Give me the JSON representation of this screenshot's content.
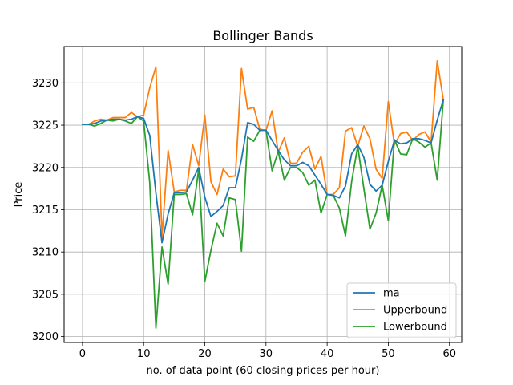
{
  "chart_data": {
    "type": "line",
    "title": "Bollinger Bands",
    "xlabel": "no. of data point (60 closing prices per hour)",
    "ylabel": "Price",
    "xlim": [
      -3,
      62
    ],
    "ylim": [
      3199.3,
      3234.3
    ],
    "xticks": [
      0,
      10,
      20,
      30,
      40,
      50,
      60
    ],
    "yticks": [
      3200,
      3205,
      3210,
      3215,
      3220,
      3225,
      3230
    ],
    "grid": true,
    "legend_position": "lower right",
    "x": [
      0,
      1,
      2,
      3,
      4,
      5,
      6,
      7,
      8,
      9,
      10,
      11,
      12,
      13,
      14,
      15,
      16,
      17,
      18,
      19,
      20,
      21,
      22,
      23,
      24,
      25,
      26,
      27,
      28,
      29,
      30,
      31,
      32,
      33,
      34,
      35,
      36,
      37,
      38,
      39,
      40,
      41,
      42,
      43,
      44,
      45,
      46,
      47,
      48,
      49,
      50,
      51,
      52,
      53,
      54,
      55,
      56,
      57,
      58,
      59
    ],
    "series": [
      {
        "name": "ma",
        "color": "#1f77b4",
        "values": [
          3225.1,
          3225.1,
          3225.2,
          3225.5,
          3225.6,
          3225.7,
          3225.7,
          3225.6,
          3225.7,
          3226.0,
          3225.8,
          3223.8,
          3217.0,
          3211.1,
          3214.5,
          3217.0,
          3217.0,
          3217.1,
          3218.5,
          3220.0,
          3216.5,
          3214.2,
          3214.8,
          3215.5,
          3217.6,
          3217.6,
          3221.0,
          3225.3,
          3225.1,
          3224.4,
          3224.4,
          3223.2,
          3222.0,
          3220.9,
          3220.2,
          3220.2,
          3220.6,
          3220.2,
          3219.1,
          3218.0,
          3216.8,
          3216.7,
          3216.4,
          3217.8,
          3221.6,
          3222.7,
          3221.2,
          3218.0,
          3217.2,
          3217.9,
          3220.7,
          3223.2,
          3222.8,
          3222.9,
          3223.4,
          3223.4,
          3223.2,
          3222.9,
          3225.6,
          3228.0
        ]
      },
      {
        "name": "Upperbound",
        "color": "#ff7f0e",
        "values": [
          3225.1,
          3225.1,
          3225.5,
          3225.7,
          3225.6,
          3225.9,
          3225.9,
          3225.9,
          3226.5,
          3226.0,
          3226.2,
          3229.4,
          3231.9,
          3211.8,
          3222.0,
          3217.1,
          3217.3,
          3217.3,
          3222.7,
          3220.2,
          3226.2,
          3218.3,
          3216.8,
          3219.8,
          3218.9,
          3219.0,
          3231.7,
          3226.9,
          3227.1,
          3224.5,
          3224.4,
          3226.7,
          3221.8,
          3223.5,
          3220.5,
          3220.5,
          3221.8,
          3222.5,
          3219.8,
          3221.3,
          3216.8,
          3216.8,
          3217.6,
          3224.3,
          3224.7,
          3222.5,
          3224.9,
          3223.4,
          3219.8,
          3218.7,
          3227.8,
          3222.7,
          3224.0,
          3224.2,
          3223.2,
          3223.9,
          3224.2,
          3223.0,
          3232.6,
          3228.0
        ]
      },
      {
        "name": "Lowerbound",
        "color": "#2ca02c",
        "values": [
          3225.1,
          3225.1,
          3224.9,
          3225.2,
          3225.6,
          3225.5,
          3225.7,
          3225.5,
          3225.2,
          3226.0,
          3225.5,
          3218.2,
          3201.0,
          3210.6,
          3206.2,
          3216.8,
          3216.8,
          3216.9,
          3214.4,
          3219.8,
          3206.5,
          3210.2,
          3213.4,
          3211.9,
          3216.4,
          3216.2,
          3210.1,
          3223.6,
          3223.1,
          3224.4,
          3224.4,
          3219.6,
          3221.9,
          3218.5,
          3220.0,
          3220.0,
          3219.4,
          3217.9,
          3218.5,
          3214.6,
          3216.8,
          3216.7,
          3215.2,
          3211.9,
          3218.3,
          3222.5,
          3217.5,
          3212.7,
          3214.6,
          3217.9,
          3213.7,
          3223.3,
          3221.6,
          3221.5,
          3223.4,
          3223.0,
          3222.4,
          3222.9,
          3218.5,
          3228.0
        ]
      }
    ]
  }
}
